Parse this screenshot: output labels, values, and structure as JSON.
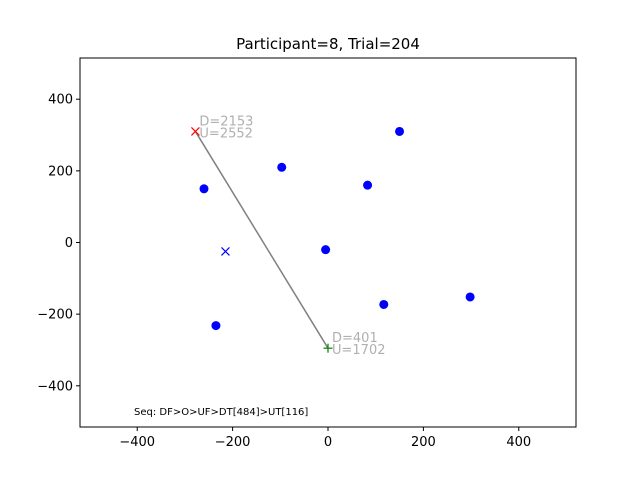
{
  "chart_data": {
    "type": "scatter",
    "title": "Participant=8, Trial=204",
    "xlabel": "",
    "ylabel": "",
    "xlim": [
      -520,
      520
    ],
    "ylim": [
      -515,
      515
    ],
    "xticks": [
      -400,
      -200,
      0,
      200,
      400
    ],
    "yticks": [
      -400,
      -200,
      0,
      200,
      400
    ],
    "xtick_labels": [
      "−400",
      "−200",
      "0",
      "200",
      "400"
    ],
    "ytick_labels": [
      "−400",
      "−200",
      "0",
      "200",
      "400"
    ],
    "grid": false,
    "targets": {
      "color": "#0000ff",
      "points": [
        {
          "x": 150,
          "y": 310
        },
        {
          "x": -97,
          "y": 210
        },
        {
          "x": 83,
          "y": 160
        },
        {
          "x": -260,
          "y": 150
        },
        {
          "x": -5,
          "y": -20
        },
        {
          "x": 298,
          "y": -152
        },
        {
          "x": 117,
          "y": -173
        },
        {
          "x": -235,
          "y": -232
        }
      ]
    },
    "blue_x": {
      "x": -215,
      "y": -25,
      "color": "#0000ff"
    },
    "start": {
      "x": 0,
      "y": -295,
      "color": "#008000",
      "label_d": "D=401",
      "label_u": "U=1702"
    },
    "end": {
      "x": -278,
      "y": 310,
      "color": "#ff0000",
      "label_d": "D=2153",
      "label_u": "U=2552"
    },
    "path_color": "#808080",
    "annotation_color": "#b0b0b0",
    "sequence": "Seq: DF>O>UF>DT[484]>UT[116]"
  }
}
